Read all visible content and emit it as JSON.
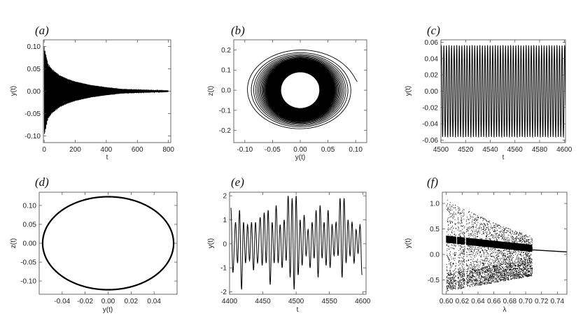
{
  "chart_data": [
    {
      "panel_label": "(a)",
      "type": "line",
      "xlabel": "t",
      "ylabel": "y(t)",
      "xlim": [
        -5,
        815
      ],
      "ylim": [
        -0.115,
        0.115
      ],
      "xticks": [
        0,
        200,
        400,
        600,
        800
      ],
      "xtick_labels": [
        "0",
        "200",
        "400",
        "600",
        "800"
      ],
      "yticks": [
        -0.1,
        -0.05,
        0.0,
        0.05,
        0.1
      ],
      "ytick_labels": [
        "-0.10",
        "-0.05",
        "0.00",
        "0.05",
        "0.10"
      ],
      "series": [
        {
          "description_free": true,
          "envelope": {
            "amplitude0": 0.1,
            "x": [
              0,
              25,
              50,
              100,
              150,
              200,
              250,
              300,
              400,
              500,
              800
            ],
            "upper": [
              0.1,
              0.062,
              0.05,
              0.036,
              0.028,
              0.022,
              0.018,
              0.014,
              0.009,
              0.005,
              0.001
            ]
          }
        }
      ]
    },
    {
      "panel_label": "(b)",
      "type": "line",
      "xlabel": "y(t)",
      "ylabel": "z(t)",
      "xlim": [
        -0.12,
        0.12
      ],
      "ylim": [
        -0.26,
        0.25
      ],
      "xticks": [
        -0.1,
        -0.05,
        0.0,
        0.05,
        0.1
      ],
      "xtick_labels": [
        "-0.10",
        "-0.05",
        "0.00",
        "0.05",
        "0.10"
      ],
      "yticks": [
        -0.2,
        -0.1,
        0.0,
        0.1,
        0.2
      ],
      "ytick_labels": [
        "-0.2",
        "-0.1",
        "0.0",
        "0.1",
        "0.2"
      ],
      "series": [
        {
          "spiral": {
            "x_amplitude_start": 0.105,
            "z_amplitude_start": 0.21,
            "x_amplitude_end": 0.035,
            "z_amplitude_end": 0.09
          }
        }
      ]
    },
    {
      "panel_label": "(c)",
      "type": "line",
      "xlabel": "t",
      "ylabel": "y(t)",
      "xlim": [
        4500,
        4601
      ],
      "ylim": [
        -0.063,
        0.063
      ],
      "xticks": [
        4500,
        4520,
        4540,
        4560,
        4580,
        4600
      ],
      "xtick_labels": [
        "4500",
        "4520",
        "4540",
        "4560",
        "4580",
        "4600"
      ],
      "yticks": [
        -0.06,
        -0.04,
        -0.02,
        0.0,
        0.02,
        0.04,
        0.06
      ],
      "ytick_labels": [
        "-0.06",
        "-0.04",
        "-0.02",
        "0.00",
        "0.02",
        "0.04",
        "0.06"
      ],
      "series": [
        {
          "oscillation": {
            "amplitude": 0.056,
            "cycles": 48
          }
        }
      ]
    },
    {
      "panel_label": "(d)",
      "type": "line",
      "xlabel": "y(t)",
      "ylabel": "z(t)",
      "xlim": [
        -0.06,
        0.06
      ],
      "ylim": [
        -0.135,
        0.135
      ],
      "xticks": [
        -0.04,
        -0.02,
        0.0,
        0.02,
        0.04
      ],
      "xtick_labels": [
        "-0.04",
        "-0.02",
        "0.00",
        "0.02",
        "0.04"
      ],
      "yticks": [
        -0.1,
        -0.05,
        0.0,
        0.05,
        0.1
      ],
      "ytick_labels": [
        "-0.10",
        "-0.05",
        "0.00",
        "0.05",
        "0.10"
      ],
      "series": [
        {
          "limit_cycle": {
            "y_amplitude": 0.057,
            "z_amplitude": 0.123
          }
        }
      ]
    },
    {
      "panel_label": "(e)",
      "type": "line",
      "xlabel": "t",
      "ylabel": "y(t)",
      "xlim": [
        4400,
        4605
      ],
      "ylim": [
        -2.1,
        2.15
      ],
      "xticks": [
        4400,
        4450,
        4500,
        4550,
        4600
      ],
      "xtick_labels": [
        "4400",
        "4450",
        "4500",
        "4550",
        "4600"
      ],
      "yticks": [
        -2,
        -1,
        0,
        1,
        2
      ],
      "ytick_labels": [
        "-2",
        "-1",
        "0",
        "1",
        "2"
      ],
      "series": [
        {
          "x_peaks": [
            4402,
            4409,
            4415,
            4421,
            4427,
            4433,
            4439,
            4446,
            4452,
            4458,
            4464,
            4470,
            4476,
            4482,
            4488,
            4494,
            4500,
            4506,
            4512,
            4518,
            4524,
            4530,
            4536,
            4542,
            4548,
            4554,
            4560,
            4566,
            4572,
            4578,
            4584,
            4590,
            4596
          ],
          "peak_values": [
            1.5,
            0.9,
            1.4,
            0.9,
            0.8,
            0.9,
            0.9,
            1.1,
            1.3,
            1.4,
            0.9,
            1.6,
            0.8,
            1.0,
            2.0,
            1.9,
            2.0,
            1.0,
            1.2,
            0.6,
            0.9,
            1.4,
            1.6,
            0.9,
            1.4,
            0.8,
            0.9,
            1.9,
            1.9,
            1.0,
            0.9,
            0.6,
            0.8
          ],
          "trough_values": [
            -1.2,
            -0.8,
            -1.9,
            -0.8,
            -0.7,
            -1.1,
            -0.8,
            -0.9,
            -0.8,
            -1.7,
            -0.8,
            -0.8,
            -1.0,
            -0.7,
            -1.4,
            -1.9,
            -1.3,
            -0.9,
            -0.5,
            -1.0,
            -0.6,
            -1.4,
            -0.6,
            -0.9,
            -1.0,
            -0.5,
            -0.5,
            -1.4,
            -0.8,
            -0.5,
            -0.8,
            -0.4,
            -1.3
          ]
        }
      ]
    },
    {
      "panel_label": "(f)",
      "type": "scatter",
      "xlabel": "λ",
      "ylabel": "y(t)",
      "xlim": [
        0.595,
        0.752
      ],
      "ylim": [
        -0.78,
        1.22
      ],
      "xticks": [
        0.6,
        0.62,
        0.64,
        0.66,
        0.68,
        0.7,
        0.72,
        0.74
      ],
      "xtick_labels": [
        "0.60",
        "0.62",
        "0.64",
        "0.66",
        "0.68",
        "0.70",
        "0.72",
        "0.74"
      ],
      "yticks": [
        -0.5,
        0.0,
        0.5,
        1.0
      ],
      "ytick_labels": [
        "-0.5",
        "0.0",
        "0.5",
        "1.0"
      ],
      "series": [
        {
          "bifurcation": {
            "lambda_chaos_end": 0.708,
            "upper_envelope_start": 1.1,
            "upper_envelope_end": 0.35,
            "lower_bound": -0.72,
            "band_start": 0.3,
            "band_end": 0.12,
            "fixed_start": 0.09,
            "fixed_end": 0.05,
            "gaps": [
              0.613,
              0.624
            ]
          }
        }
      ]
    }
  ]
}
